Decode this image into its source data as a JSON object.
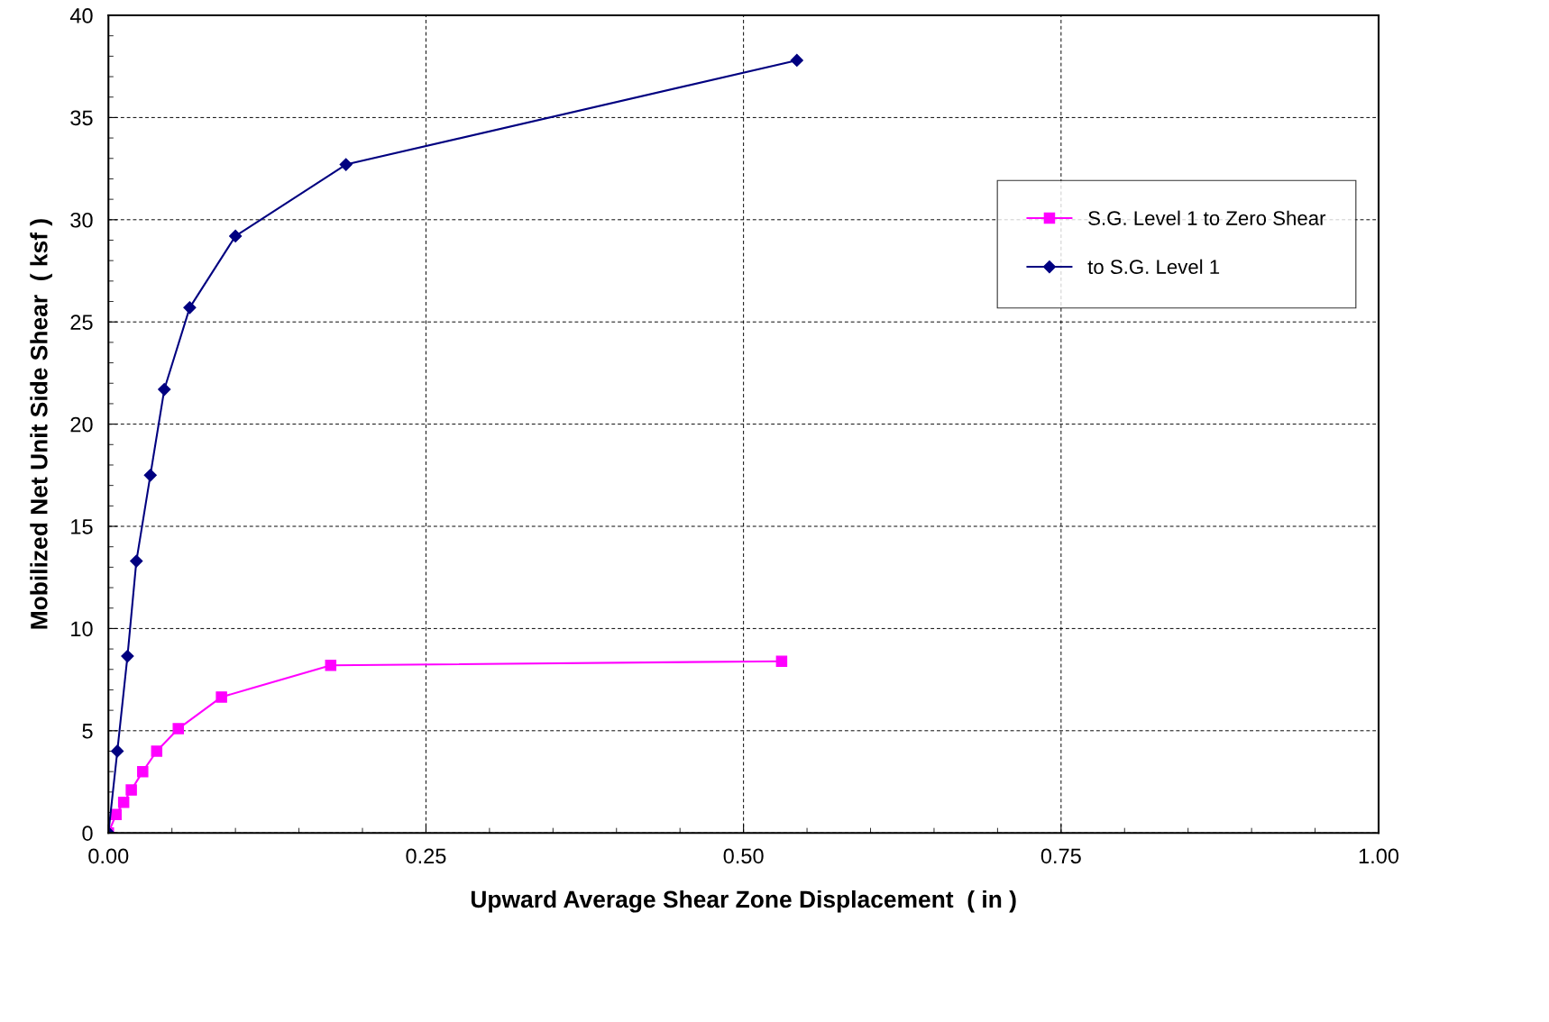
{
  "chart_data": {
    "type": "line",
    "xlabel": "Upward Average Shear Zone Displacement  ( in )",
    "ylabel": "Mobilized Net Unit Side Shear  ( ksf )",
    "xlim": [
      0,
      1
    ],
    "xticks": [
      {
        "value": 0,
        "label": "0.00"
      },
      {
        "value": 0.25,
        "label": "0.25"
      },
      {
        "value": 0.5,
        "label": "0.50"
      },
      {
        "value": 0.75,
        "label": "0.75"
      },
      {
        "value": 1,
        "label": "1.00"
      }
    ],
    "ylim": [
      0,
      40
    ],
    "yticks": [
      0,
      5,
      10,
      15,
      20,
      25,
      30,
      35,
      40
    ],
    "grid": true,
    "legend": "right",
    "series": [
      {
        "name": "S.G. Level 1 to Zero Shear",
        "color": "#ff00ff",
        "marker": "square",
        "x": [
          0,
          0.006,
          0.012,
          0.018,
          0.027,
          0.038,
          0.055,
          0.089,
          0.175,
          0.53
        ],
        "values": [
          0,
          0.9,
          1.5,
          2.1,
          3.0,
          4.0,
          5.1,
          6.65,
          8.2,
          8.4
        ]
      },
      {
        "name": "to S.G. Level 1",
        "color": "#000080",
        "marker": "diamond",
        "x": [
          0,
          0.007,
          0.015,
          0.022,
          0.033,
          0.044,
          0.064,
          0.1,
          0.187,
          0.542
        ],
        "values": [
          0,
          4.0,
          8.65,
          13.3,
          17.5,
          21.7,
          25.7,
          29.2,
          32.7,
          37.8
        ]
      }
    ]
  }
}
